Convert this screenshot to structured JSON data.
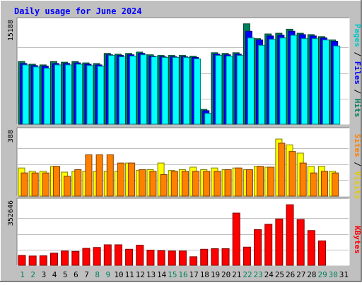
{
  "chart_data": {
    "type": "bar",
    "title": "Daily usage for June 2024",
    "categories": [
      "1",
      "2",
      "3",
      "4",
      "5",
      "6",
      "7",
      "8",
      "9",
      "10",
      "11",
      "12",
      "13",
      "14",
      "15",
      "16",
      "17",
      "18",
      "19",
      "20",
      "21",
      "22",
      "23",
      "24",
      "25",
      "26",
      "27",
      "28",
      "29",
      "30",
      "31"
    ],
    "weekend_days": [
      "1",
      "2",
      "8",
      "9",
      "15",
      "16",
      "22",
      "23",
      "29",
      "30"
    ],
    "panels": [
      {
        "name": "hits-files-pages",
        "ymax_label": "15188",
        "ylim": [
          0,
          15188
        ],
        "series": [
          {
            "name": "Hits",
            "color": "#00805c",
            "values": [
              9300,
              8900,
              8800,
              9300,
              9200,
              9300,
              9100,
              9000,
              10500,
              10400,
              10500,
              10700,
              10300,
              10200,
              10200,
              10200,
              10100,
              2200,
              10600,
              10500,
              10600,
              14900,
              12700,
              13400,
              13500,
              14100,
              13500,
              13300,
              13000,
              12500,
              null
            ]
          },
          {
            "name": "Files",
            "color": "#0000ff",
            "values": [
              9000,
              8700,
              8600,
              9000,
              9000,
              9100,
              8900,
              8800,
              10300,
              10200,
              10300,
              10500,
              10100,
              10000,
              10000,
              10000,
              9900,
              2000,
              10400,
              10300,
              10400,
              13800,
              12500,
              13100,
              13200,
              13800,
              13300,
              13100,
              12800,
              12300,
              null
            ]
          },
          {
            "name": "Pages",
            "color": "#00ffff",
            "values": [
              8800,
              8500,
              8300,
              8800,
              8800,
              8900,
              8700,
              8600,
              10200,
              10000,
              10100,
              10300,
              10000,
              9900,
              9900,
              9900,
              9700,
              1600,
              10200,
              10100,
              10200,
              12800,
              11700,
              12600,
              12800,
              13200,
              12700,
              12700,
              12500,
              11600,
              null
            ]
          }
        ]
      },
      {
        "name": "visits-sites",
        "ymax_label": "388",
        "ylim": [
          0,
          388
        ],
        "series": [
          {
            "name": "Visits",
            "color": "#ffff00",
            "values": [
              170,
              150,
              150,
              180,
              145,
              150,
              150,
              150,
              150,
              150,
              200,
              155,
              160,
              200,
              155,
              160,
              175,
              160,
              170,
              160,
              170,
              160,
              180,
              175,
              345,
              310,
              260,
              180,
              180,
              150,
              null
            ]
          },
          {
            "name": "Sites",
            "color": "#ff8000",
            "values": [
              140,
              140,
              140,
              180,
              120,
              160,
              250,
              250,
              250,
              200,
              200,
              160,
              150,
              130,
              150,
              150,
              150,
              150,
              150,
              160,
              170,
              160,
              180,
              175,
              320,
              270,
              200,
              140,
              150,
              140,
              null
            ]
          }
        ]
      },
      {
        "name": "kbytes",
        "ymax_label": "352646",
        "ylim": [
          0,
          352646
        ],
        "series": [
          {
            "name": "KBytes",
            "color": "#ff0000",
            "values": [
              55000,
              52000,
              53000,
              68000,
              80000,
              78000,
              95000,
              100000,
              115000,
              115000,
              90000,
              113000,
              85000,
              82000,
              80000,
              80000,
              48000,
              90000,
              93000,
              93000,
              293000,
              102000,
              200000,
              230000,
              260000,
              340000,
              257000,
              195000,
              137000,
              null,
              null
            ]
          }
        ]
      }
    ],
    "right_labels": [
      {
        "panel": "hits-files-pages",
        "parts": [
          [
            "Pages",
            "#00c8c8"
          ],
          [
            " / ",
            "#000000"
          ],
          [
            "Files",
            "#0000ff"
          ],
          [
            " / ",
            "#000000"
          ],
          [
            "Hits",
            "#00805c"
          ]
        ]
      },
      {
        "panel": "visits-sites",
        "parts": [
          [
            "Sites",
            "#ff8000"
          ],
          [
            " / ",
            "#000000"
          ],
          [
            "Visits",
            "#e6c800"
          ]
        ]
      },
      {
        "panel": "kbytes",
        "parts": [
          [
            "KBytes",
            "#ff0000"
          ]
        ]
      }
    ],
    "grid": true,
    "legend": "right-vertical"
  },
  "colors": {
    "frame": "#c0c0c0",
    "plot_bg": "#ffffff",
    "grid": "#000000",
    "title": "#0000ff",
    "weekday_label": "#000000",
    "weekend_label": "#00805c"
  }
}
